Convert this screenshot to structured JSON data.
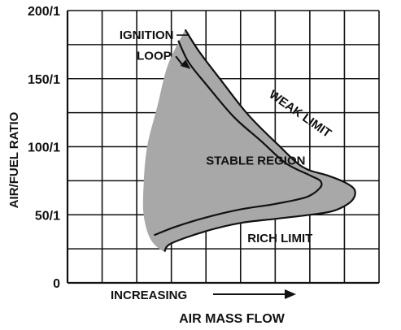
{
  "chart_data": {
    "type": "area",
    "title": "",
    "ylabel": "AIR/FUEL RATIO",
    "xlabel": "AIR MASS FLOW",
    "x_direction_label": "INCREASING",
    "yticks": [
      {
        "value": 0,
        "label": "0"
      },
      {
        "value": 50,
        "label": "50/1"
      },
      {
        "value": 100,
        "label": "100/1"
      },
      {
        "value": 150,
        "label": "150/1"
      },
      {
        "value": 200,
        "label": "200/1"
      }
    ],
    "ylim": [
      0,
      200
    ],
    "xlim": [
      0,
      9
    ],
    "x_gridlines": 9,
    "y_gridlines": 8,
    "grid": true,
    "x_numeric_labels": false,
    "fill_color": "#a8a8a8",
    "line_color": "#111111",
    "series": [
      {
        "name": "WEAK LIMIT",
        "kind": "boundary",
        "points": [
          [
            3.4,
            186
          ],
          [
            3.8,
            170
          ],
          [
            4.4,
            150
          ],
          [
            5.2,
            124
          ],
          [
            6.1,
            101
          ],
          [
            6.8,
            85
          ],
          [
            7.5,
            79
          ],
          [
            8.0,
            74
          ],
          [
            8.3,
            68
          ],
          [
            8.2,
            60
          ],
          [
            7.7,
            53
          ],
          [
            7.0,
            50
          ]
        ]
      },
      {
        "name": "RICH LIMIT",
        "kind": "boundary",
        "points": [
          [
            7.0,
            50
          ],
          [
            6.0,
            47
          ],
          [
            5.0,
            44
          ],
          [
            4.0,
            38
          ],
          [
            3.0,
            29
          ],
          [
            2.8,
            23
          ]
        ]
      },
      {
        "name": "",
        "kind": "left-boundary",
        "points": [
          [
            2.8,
            23
          ],
          [
            2.4,
            32
          ],
          [
            2.2,
            50
          ],
          [
            2.2,
            72
          ],
          [
            2.3,
            100
          ],
          [
            2.6,
            130
          ],
          [
            2.9,
            160
          ],
          [
            3.4,
            186
          ]
        ]
      },
      {
        "name": "IGNITION LOOP",
        "kind": "curve",
        "points": [
          [
            3.2,
            178
          ],
          [
            3.5,
            162
          ],
          [
            4.0,
            146
          ],
          [
            4.8,
            122
          ],
          [
            5.6,
            104
          ],
          [
            6.3,
            88
          ],
          [
            7.0,
            79
          ],
          [
            7.3,
            75
          ],
          [
            7.3,
            70
          ],
          [
            6.9,
            63
          ],
          [
            6.0,
            58
          ],
          [
            5.0,
            54
          ],
          [
            4.0,
            48
          ],
          [
            3.1,
            41
          ],
          [
            2.5,
            35
          ]
        ]
      }
    ],
    "annotations": [
      {
        "text": "IGNITION",
        "x": 1.5,
        "y": 179
      },
      {
        "text": "LOOP",
        "x": 2.0,
        "y": 164
      },
      {
        "text": "WEAK LIMIT",
        "x": 5.8,
        "y": 137
      },
      {
        "text": "STABLE REGION",
        "x": 4.0,
        "y": 87
      },
      {
        "text": "RICH LIMIT",
        "x": 5.2,
        "y": 30
      }
    ]
  }
}
